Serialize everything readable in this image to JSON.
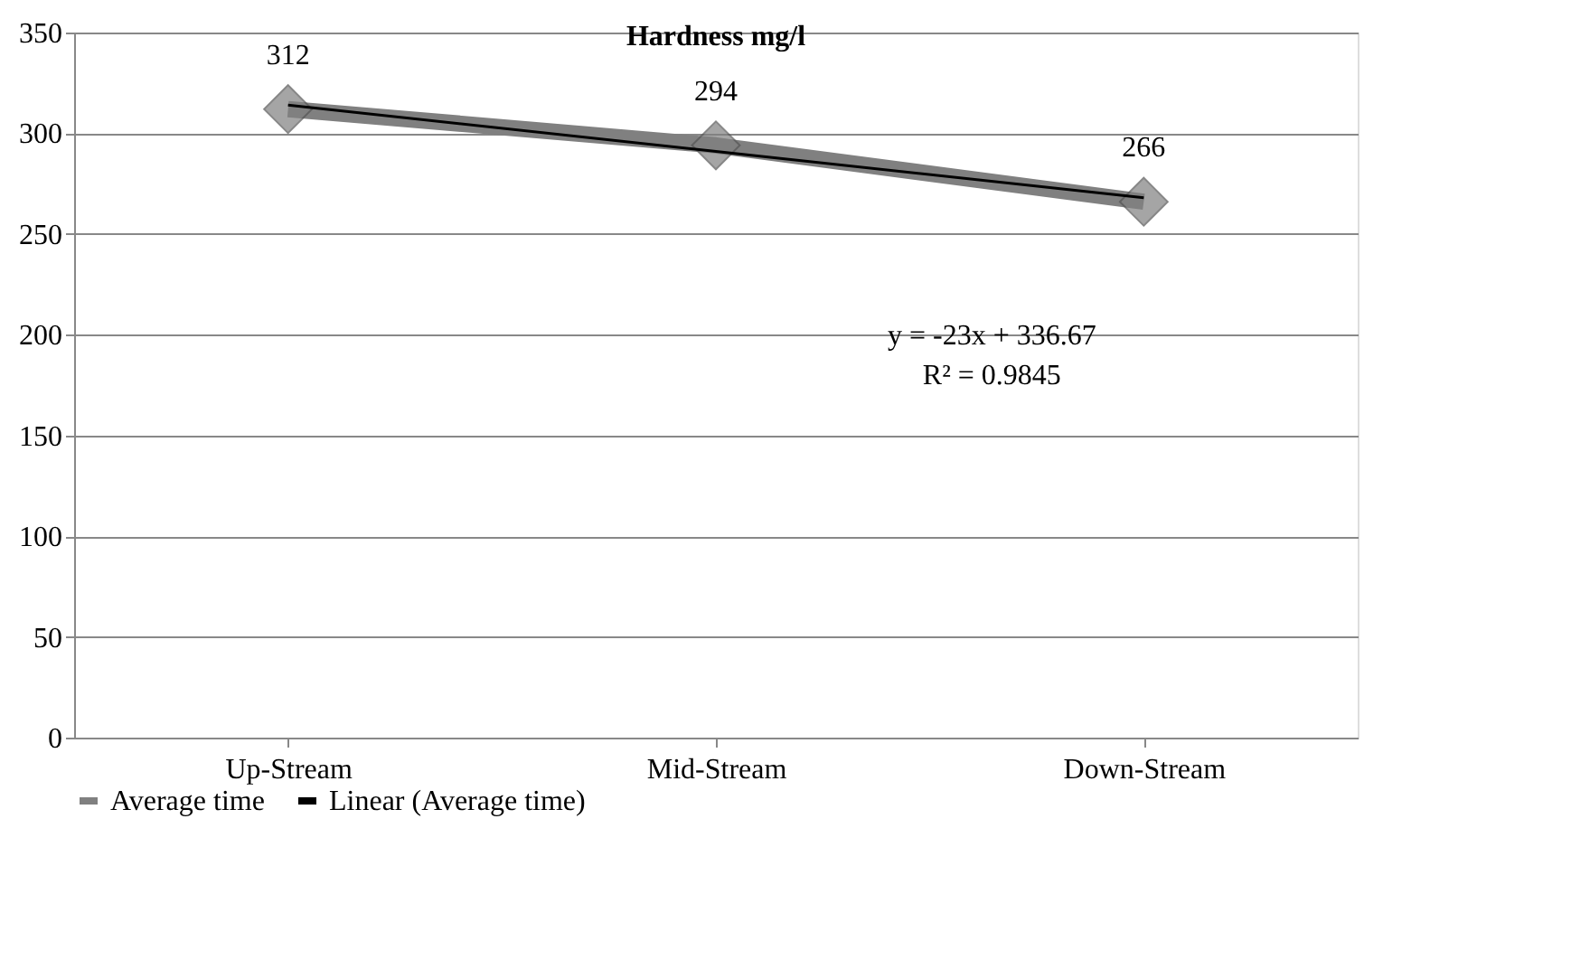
{
  "chart_data": {
    "type": "line",
    "title": "Hardness mg/l",
    "categories": [
      "Up-Stream",
      "Mid-Stream",
      "Down-Stream"
    ],
    "series": [
      {
        "name": "Average time",
        "color": "#808080",
        "values": [
          312,
          294,
          266
        ],
        "marker": "diamond",
        "value_labels": [
          "312",
          "294",
          "266"
        ]
      },
      {
        "name": "Linear (Average time)",
        "color": "#000000",
        "type": "line",
        "x": [
          "Up-Stream",
          "Mid-Stream",
          "Down-Stream"
        ],
        "values": [
          314,
          291,
          268
        ],
        "marker": "none"
      }
    ],
    "ylim": [
      0,
      350
    ],
    "yticks": [
      0,
      50,
      100,
      150,
      200,
      250,
      300,
      350
    ],
    "grid": "y",
    "legend": "bottom",
    "annotations": [
      "y = -23x + 336.67",
      "R² = 0.9845"
    ]
  }
}
